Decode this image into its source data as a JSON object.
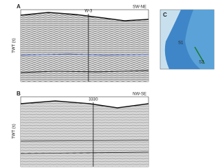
{
  "panels": [
    {
      "letter": "A",
      "axis_label": "TWT (s)",
      "well": "W-3",
      "corner": "SW-NE"
    },
    {
      "letter": "B",
      "axis_label": "TWT (s)",
      "well": "3330",
      "corner": "NW-SE"
    },
    {
      "letter": "C",
      "labels": [
        "S1",
        "S2"
      ]
    }
  ]
}
